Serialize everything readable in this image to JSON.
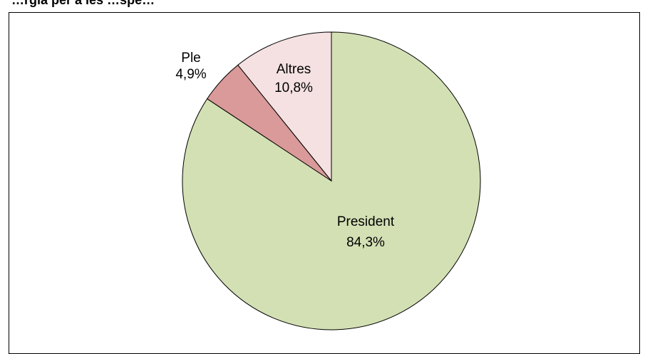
{
  "chart_data": {
    "type": "pie",
    "title": "…rgia per a les …spe…",
    "slices": [
      {
        "label": "President",
        "value_label": "84,3%",
        "value": 84.3,
        "color": "#d3e0b4"
      },
      {
        "label": "Ple",
        "value_label": "4,9%",
        "value": 4.9,
        "color": "#d99a99"
      },
      {
        "label": "Altres",
        "value_label": "10,8%",
        "value": 10.8,
        "color": "#f5e1e2"
      }
    ],
    "start": "12 o'clock",
    "direction": "clockwise",
    "stroke_color": "#000000",
    "legend": "none"
  }
}
